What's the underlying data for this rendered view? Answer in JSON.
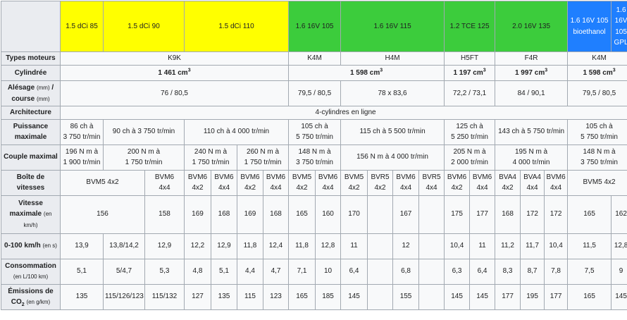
{
  "engines": {
    "e1": "1.5 dCi 85",
    "e2": "1.5 dCi 90",
    "e3": "1.5 dCi 110",
    "e4": "1.6 16V 105",
    "e5": "1.6 16V 115",
    "e6": "1.2 TCE 125",
    "e7": "2.0 16V 135",
    "e8": "1.6 16V 105 bioethanol",
    "e9": "1.6 16V 105 GPL"
  },
  "header_colors": {
    "diesel": "#ffff00",
    "petrol": "#3ccc3c",
    "alt": "#1f7fff"
  },
  "labels": {
    "types": "Types moteurs",
    "cyl": "Cylindrée",
    "ales_main": "Alésage",
    "ales_unit1": "(mm)",
    "ales_sep": " / course ",
    "ales_unit2": "(mm)",
    "arch": "Architecture",
    "puiss": "Puissance maximale",
    "couple": "Couple maximal",
    "boite": "Boîte de vitesses",
    "vit_main": "Vitesse maximale",
    "vit_unit": "(en km/h)",
    "acc_main": "0-100 km/h",
    "acc_unit": "(en s)",
    "conso_main": "Consommation",
    "conso_unit": "(en L/100 km)",
    "emis_main": "Émissions de CO",
    "emis_sub": "2",
    "emis_unit": "(en g/km)"
  },
  "types": {
    "a": "K9K",
    "b": "K4M",
    "c": "H4M",
    "d": "H5FT",
    "e": "F4R",
    "f": "K4M"
  },
  "cyl": {
    "a": "1 461 cm",
    "b": "1 598 cm",
    "c": "1 197 cm",
    "d": "1 997 cm",
    "e": "1 598 cm",
    "sup": "3"
  },
  "ales": {
    "a": "76 / 80,5",
    "b": "79,5 / 80,5",
    "c": "78 x 83,6",
    "d": "72,2 / 73,1",
    "e": "84 / 90,1",
    "f": "79,5 / 80,5"
  },
  "arch": "4-cylindres en ligne",
  "puiss": {
    "a1": "86 ch à",
    "a2": "3 750 tr/min",
    "b": "90 ch à 3 750 tr/min",
    "c": "110 ch à 4 000 tr/min",
    "d1": "105 ch à",
    "d2": "5 750 tr/min",
    "e": "115 ch à 5 500 tr/min",
    "f1": "125 ch à",
    "f2": "5 250 tr/min",
    "g": "143 ch à 5 750 tr/min",
    "h1": "105 ch à",
    "h2": "5 750 tr/min"
  },
  "couple": {
    "a1": "196 N m à",
    "a2": "1 900 tr/min",
    "b1": "200 N m à",
    "b2": "1 750 tr/min",
    "c1": "240 N m à",
    "c2": "1 750 tr/min",
    "d1": "260 N m à",
    "d2": "1 750 tr/min",
    "e1": "148 N m à",
    "e2": "3 750 tr/min",
    "f": "156 N m à 4 000 tr/min",
    "g1": "205 N m à",
    "g2": "2 000 tr/min",
    "h1": "195 N m à",
    "h2": "4 000 tr/min",
    "i1": "148 N m à",
    "i2": "3 750 tr/min"
  },
  "boite": {
    "a": "BVM5 4x2",
    "b1": "BVM6",
    "b2": "4x4",
    "c1": "BVM6",
    "c2": "4x2",
    "d1": "BVM6",
    "d2": "4x4",
    "e1": "BVM6",
    "e2": "4x2",
    "f1": "BVM6",
    "f2": "4x4",
    "g1": "BVM5",
    "g2": "4x2",
    "h1": "BVM6",
    "h2": "4x4",
    "i1": "BVM5",
    "i2": "4x2",
    "j1": "BVR5",
    "j2": "4x2",
    "k1": "BVM6",
    "k2": "4x4",
    "l1": "BVR5",
    "l2": "4x4",
    "m1": "BVM6",
    "m2": "4x2",
    "n1": "BVM6",
    "n2": "4x4",
    "o1": "BVA4",
    "o2": "4x2",
    "p1": "BVA4",
    "p2": "4x4",
    "q1": "BVM6",
    "q2": "4x4",
    "r": "BVM5 4x2"
  },
  "vit": {
    "a": "156",
    "b": "158",
    "c": "169",
    "d": "168",
    "e": "169",
    "f": "168",
    "g": "165",
    "h": "160",
    "i": "170",
    "j": "",
    "k": "167",
    "l": "",
    "m": "175",
    "n": "177",
    "o": "168",
    "p": "172",
    "q": "172",
    "r": "165",
    "s": "162"
  },
  "acc": {
    "a": "13,9",
    "b": "13,8/14,2",
    "c": "12,9",
    "d": "12,2",
    "e": "12,9",
    "f": "11,8",
    "g": "12,4",
    "h": "11,8",
    "i": "12,8",
    "j": "11",
    "k": "",
    "l": "12",
    "m": "",
    "n": "10,4",
    "o": "11",
    "p": "11,2",
    "q": "11,7",
    "r": "10,4",
    "s": "11,5",
    "t": "12,8"
  },
  "conso": {
    "a": "5,1",
    "b": "5/4,7",
    "c": "5,3",
    "d": "4,8",
    "e": "5,1",
    "f": "4,4",
    "g": "4,7",
    "h": "7,1",
    "i": "10",
    "j": "6,4",
    "k": "",
    "l": "6,8",
    "m": "",
    "n": "6,3",
    "o": "6,4",
    "p": "8,3",
    "q": "8,7",
    "r": "7,8",
    "s": "7,5",
    "t": "9"
  },
  "emis": {
    "a": "135",
    "b": "115/126/123",
    "c": "115/132",
    "d": "127",
    "e": "135",
    "f": "115",
    "g": "123",
    "h": "165",
    "i": "185",
    "j": "145",
    "k": "",
    "l": "155",
    "m": "",
    "n": "145",
    "o": "145",
    "p": "177",
    "q": "195",
    "r": "177",
    "s": "165",
    "t": "145"
  }
}
